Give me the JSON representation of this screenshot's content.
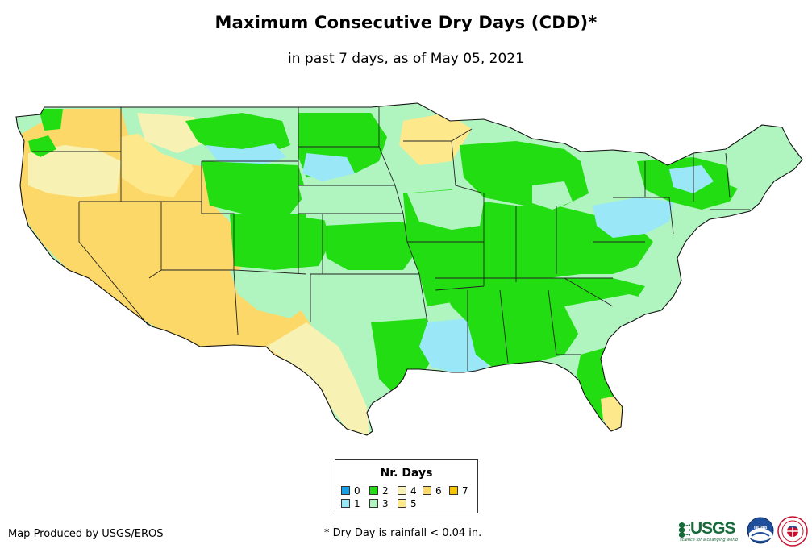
{
  "title": "Maximum Consecutive Dry Days (CDD)*",
  "subtitle": "in past 7 days, as of May 05, 2021",
  "legend": {
    "title": "Nr. Days",
    "items": [
      {
        "label": "0",
        "color": "#1a9ee6"
      },
      {
        "label": "1",
        "color": "#9ae8f7"
      },
      {
        "label": "2",
        "color": "#22dd11"
      },
      {
        "label": "3",
        "color": "#b0f4c0"
      },
      {
        "label": "4",
        "color": "#f7f2b4"
      },
      {
        "label": "5",
        "color": "#fde98c"
      },
      {
        "label": "6",
        "color": "#fcd869"
      },
      {
        "label": "7",
        "color": "#f6c300"
      }
    ]
  },
  "credit": "Map Produced by USGS/EROS",
  "footnote": "* Dry Day is rainfall < 0.04 in.",
  "logos": {
    "usgs": "USGS",
    "usgs_tagline": "science for a changing world",
    "noaa": "noaa",
    "nws_icon": "national-weather-service-logo-icon"
  }
}
